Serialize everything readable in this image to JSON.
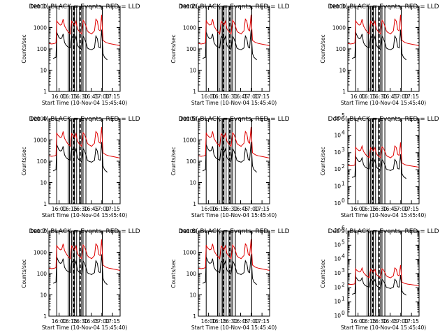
{
  "colors": {
    "events": "#000000",
    "lld": "#e00000",
    "axis": "#000000",
    "background": "#ffffff"
  },
  "x_ticks": [
    "16:00",
    "16:15",
    "16:30",
    "16:45",
    "17:00",
    "17:15"
  ],
  "xlabel": "Start Time (10-Nov-04 15:45:40)",
  "ylabel": "Counts/sec",
  "panels": [
    {
      "title": "Det 1( BLACK = Events, RED = LLD",
      "tick_style": "plain",
      "ylim": [
        1,
        10000
      ]
    },
    {
      "title": "Det 2( BLACK = Events, RED = LLD",
      "tick_style": "plain",
      "ylim": [
        1,
        10000
      ]
    },
    {
      "title": "Det 3( BLACK = Events, RED = LLD",
      "tick_style": "plain",
      "ylim": [
        1,
        10000
      ]
    },
    {
      "title": "Det 4( BLACK = Events, RED = LLD",
      "tick_style": "plain",
      "ylim": [
        1,
        10000
      ]
    },
    {
      "title": "Det 5( BLACK = Events, RED = LLD",
      "tick_style": "plain",
      "ylim": [
        1,
        10000
      ]
    },
    {
      "title": "Det 6( BLACK = Events, RED = LLD",
      "tick_style": "exp",
      "ylim": [
        1,
        100000
      ]
    },
    {
      "title": "Det 7( BLACK = Events, RED = LLD",
      "tick_style": "plain",
      "ylim": [
        1,
        10000
      ]
    },
    {
      "title": "Det 8( BLACK = Events, RED = LLD",
      "tick_style": "plain",
      "ylim": [
        1,
        10000
      ]
    },
    {
      "title": "Det 9( BLACK = Events, RED = LLD",
      "tick_style": "exp",
      "ylim": [
        1,
        1000000
      ]
    }
  ],
  "chart_data": {
    "type": "line",
    "yscale": "log",
    "x_unit": "minutes after 15:45:40 on 10-Nov-04",
    "xlim": [
      0,
      100
    ],
    "vertical_markers": {
      "solid": [
        11,
        27,
        29,
        32,
        34,
        36,
        39,
        43,
        46,
        48,
        52,
        75
      ],
      "dashed": [
        35,
        44
      ]
    },
    "series": [
      {
        "name": "BLACK = Events",
        "x": [
          6,
          8,
          10,
          11,
          12,
          14,
          16,
          18,
          20,
          22,
          24,
          26,
          28,
          30,
          32,
          34,
          36,
          38,
          40,
          42,
          44,
          46,
          48,
          50,
          52,
          54,
          56,
          58,
          60,
          62,
          64,
          66,
          68,
          70,
          72,
          74,
          76,
          78,
          80,
          82
        ],
        "y": [
          35,
          38,
          40,
          600,
          500,
          350,
          300,
          320,
          500,
          200,
          150,
          130,
          120,
          110,
          400,
          320,
          250,
          380,
          150,
          120,
          110,
          90,
          400,
          300,
          200,
          110,
          100,
          95,
          90,
          100,
          110,
          400,
          300,
          120,
          110,
          800,
          60,
          40,
          35,
          30
        ]
      },
      {
        "name": "RED = LLD",
        "x": [
          0,
          4,
          8,
          10,
          11,
          12,
          14,
          16,
          18,
          20,
          22,
          24,
          26,
          28,
          30,
          32,
          34,
          36,
          38,
          40,
          42,
          44,
          46,
          48,
          50,
          52,
          54,
          56,
          58,
          60,
          62,
          64,
          66,
          68,
          70,
          72,
          74,
          76,
          80,
          84,
          88,
          92,
          96,
          100
        ],
        "y": [
          180,
          170,
          180,
          190,
          2200,
          1800,
          1500,
          1300,
          1400,
          2500,
          1200,
          900,
          700,
          600,
          500,
          2000,
          1600,
          1300,
          2000,
          900,
          700,
          600,
          500,
          2200,
          1800,
          1200,
          700,
          600,
          550,
          500,
          600,
          700,
          2500,
          2000,
          800,
          700,
          4000,
          250,
          200,
          180,
          170,
          160,
          150,
          140
        ]
      }
    ]
  }
}
